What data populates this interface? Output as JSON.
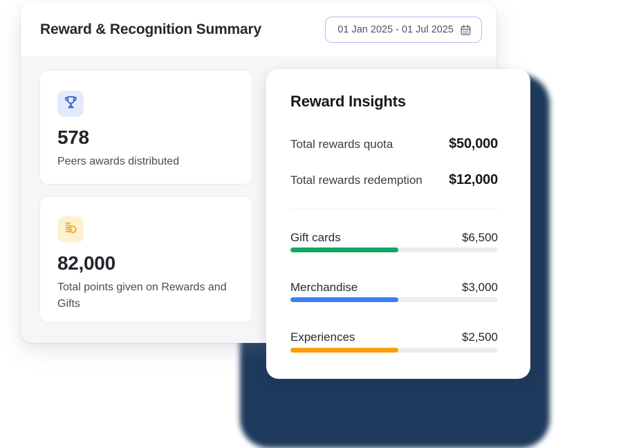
{
  "header": {
    "title": "Reward & Recognition Summary",
    "date_range": "01 Jan 2025 - 01 Jul 2025"
  },
  "stats": [
    {
      "icon": "trophy-icon",
      "icon_color": "#2E5BD7",
      "icon_bg": "#E4EAFB",
      "value": "578",
      "label": "Peers awards distributed"
    },
    {
      "icon": "coins-icon",
      "icon_color": "#EFAE1E",
      "icon_bg": "#FCF1D2",
      "value": "82,000",
      "label": "Total points given on Rewards and Gifts"
    }
  ],
  "insights": {
    "title": "Reward Insights",
    "summary": [
      {
        "label": "Total rewards quota",
        "value": "$50,000"
      },
      {
        "label": "Total rewards redemption",
        "value": "$12,000"
      }
    ],
    "categories": [
      {
        "label": "Gift cards",
        "value": "$6,500",
        "color": "#10A664",
        "fill_percent": 52
      },
      {
        "label": "Merchandise",
        "value": "$3,000",
        "color": "#3D7EF2",
        "fill_percent": 52
      },
      {
        "label": "Experiences",
        "value": "$2,500",
        "color": "#FB9F0E",
        "fill_percent": 52
      }
    ]
  },
  "colors": {
    "shadow_blob": "#1E3A5C",
    "date_border": "#B6B8EE",
    "panel_body_bg": "#F6F6F8",
    "bar_track": "#ECEDEF"
  }
}
